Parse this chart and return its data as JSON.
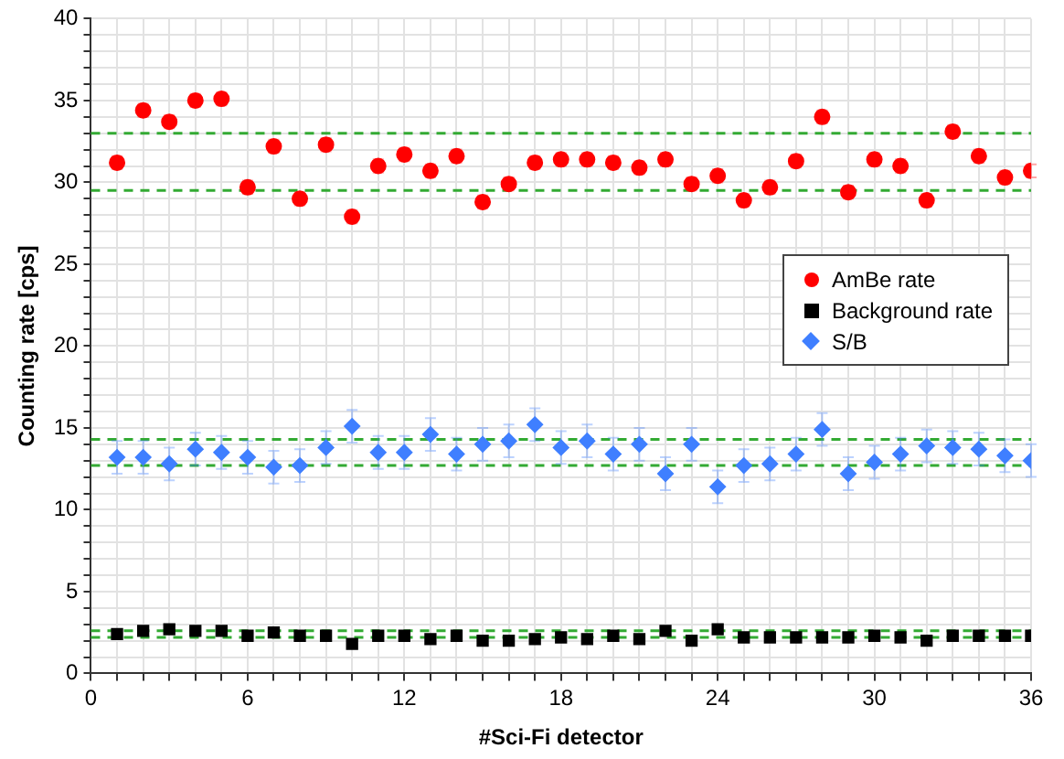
{
  "chart_data": {
    "type": "scatter",
    "xlabel": "#Sci-Fi detector",
    "ylabel": "Counting rate [cps]",
    "x": [
      1,
      2,
      3,
      4,
      5,
      6,
      7,
      8,
      9,
      10,
      11,
      12,
      13,
      14,
      15,
      16,
      17,
      18,
      19,
      20,
      21,
      22,
      23,
      24,
      25,
      26,
      27,
      28,
      29,
      30,
      31,
      32,
      33,
      34,
      35,
      36
    ],
    "series": [
      {
        "name": "AmBe rate",
        "color": "#ff0000",
        "marker": "circle",
        "values": [
          31.2,
          34.4,
          33.7,
          35.0,
          35.1,
          29.7,
          32.2,
          29.0,
          32.3,
          27.9,
          31.0,
          31.7,
          30.7,
          31.6,
          28.8,
          29.9,
          31.2,
          31.4,
          31.4,
          31.2,
          30.9,
          31.4,
          29.9,
          30.4,
          28.9,
          29.7,
          31.3,
          34.0,
          29.4,
          31.4,
          31.0,
          28.9,
          33.1,
          31.6,
          30.3,
          30.7
        ],
        "errors": [
          0.4,
          0.4,
          0.4,
          0.4,
          0.4,
          0.4,
          0.4,
          0.4,
          0.4,
          0.4,
          0.4,
          0.4,
          0.4,
          0.4,
          0.4,
          0.4,
          0.4,
          0.4,
          0.4,
          0.4,
          0.4,
          0.4,
          0.4,
          0.4,
          0.4,
          0.4,
          0.4,
          0.4,
          0.4,
          0.4,
          0.4,
          0.4,
          0.4,
          0.4,
          0.4,
          0.4
        ]
      },
      {
        "name": "Background rate",
        "color": "#000000",
        "marker": "square",
        "values": [
          2.4,
          2.6,
          2.7,
          2.6,
          2.6,
          2.3,
          2.5,
          2.3,
          2.3,
          1.8,
          2.3,
          2.3,
          2.1,
          2.3,
          2.0,
          2.0,
          2.1,
          2.2,
          2.1,
          2.3,
          2.1,
          2.6,
          2.0,
          2.7,
          2.2,
          2.2,
          2.2,
          2.2,
          2.2,
          2.3,
          2.2,
          2.0,
          2.3,
          2.3,
          2.3,
          2.3
        ]
      },
      {
        "name": "S/B",
        "color": "#3f7fff",
        "marker": "diamond",
        "values": [
          13.2,
          13.2,
          12.8,
          13.7,
          13.5,
          13.2,
          12.6,
          12.7,
          13.8,
          15.1,
          13.5,
          13.5,
          14.6,
          13.4,
          14.0,
          14.2,
          15.2,
          13.8,
          14.2,
          13.4,
          14.0,
          12.2,
          14.0,
          11.4,
          12.7,
          12.8,
          13.4,
          14.9,
          12.2,
          12.9,
          13.4,
          13.9,
          13.8,
          13.7,
          13.3,
          13.0
        ],
        "errors": [
          1,
          1,
          1,
          1,
          1,
          1,
          1,
          1,
          1,
          1,
          1,
          1,
          1,
          1,
          1,
          1,
          1,
          1,
          1,
          1,
          1,
          1,
          1,
          1,
          1,
          1,
          1,
          1,
          1,
          1,
          1,
          1,
          1,
          1,
          1,
          1
        ]
      }
    ],
    "xlim": [
      0,
      36
    ],
    "xticks": [
      0,
      {
        "value": 1,
        "label": null
      },
      {
        "value": 2,
        "label": null
      },
      {
        "value": 3,
        "label": null
      },
      {
        "value": 4,
        "label": null
      },
      {
        "value": 5,
        "label": null
      },
      6,
      {
        "value": 7,
        "label": null
      },
      {
        "value": 8,
        "label": null
      },
      {
        "value": 9,
        "label": null
      },
      {
        "value": 10,
        "label": null
      },
      {
        "value": 11,
        "label": null
      },
      12,
      {
        "value": 13,
        "label": null
      },
      {
        "value": 14,
        "label": null
      },
      {
        "value": 15,
        "label": null
      },
      {
        "value": 16,
        "label": null
      },
      {
        "value": 17,
        "label": null
      },
      18,
      {
        "value": 19,
        "label": null
      },
      {
        "value": 20,
        "label": null
      },
      {
        "value": 21,
        "label": null
      },
      {
        "value": 22,
        "label": null
      },
      {
        "value": 23,
        "label": null
      },
      24,
      {
        "value": 25,
        "label": null
      },
      {
        "value": 26,
        "label": null
      },
      {
        "value": 27,
        "label": null
      },
      {
        "value": 28,
        "label": null
      },
      {
        "value": 29,
        "label": null
      },
      30,
      {
        "value": 31,
        "label": null
      },
      {
        "value": 32,
        "label": null
      },
      {
        "value": 33,
        "label": null
      },
      {
        "value": 34,
        "label": null
      },
      {
        "value": 35,
        "label": null
      },
      36
    ],
    "ylim": [
      0,
      40
    ],
    "yticks": [
      0,
      {
        "value": 1,
        "label": null
      },
      {
        "value": 2,
        "label": null
      },
      {
        "value": 3,
        "label": null
      },
      {
        "value": 4,
        "label": null
      },
      5,
      {
        "value": 6,
        "label": null
      },
      {
        "value": 7,
        "label": null
      },
      {
        "value": 8,
        "label": null
      },
      {
        "value": 9,
        "label": null
      },
      10,
      {
        "value": 11,
        "label": null
      },
      {
        "value": 12,
        "label": null
      },
      {
        "value": 13,
        "label": null
      },
      {
        "value": 14,
        "label": null
      },
      15,
      {
        "value": 16,
        "label": null
      },
      {
        "value": 17,
        "label": null
      },
      {
        "value": 18,
        "label": null
      },
      {
        "value": 19,
        "label": null
      },
      20,
      {
        "value": 21,
        "label": null
      },
      {
        "value": 22,
        "label": null
      },
      {
        "value": 23,
        "label": null
      },
      {
        "value": 24,
        "label": null
      },
      25,
      {
        "value": 26,
        "label": null
      },
      {
        "value": 27,
        "label": null
      },
      {
        "value": 28,
        "label": null
      },
      {
        "value": 29,
        "label": null
      },
      30,
      {
        "value": 31,
        "label": null
      },
      {
        "value": 32,
        "label": null
      },
      {
        "value": 33,
        "label": null
      },
      {
        "value": 34,
        "label": null
      },
      35,
      {
        "value": 36,
        "label": null
      },
      {
        "value": 37,
        "label": null
      },
      {
        "value": 38,
        "label": null
      },
      {
        "value": 39,
        "label": null
      },
      40
    ],
    "ref_lines": [
      {
        "axis": "y",
        "value": 33,
        "color": "#33aa33",
        "line_style": "dashed"
      },
      {
        "axis": "y",
        "value": 29.5,
        "color": "#33aa33",
        "line_style": "dashed"
      },
      {
        "axis": "y",
        "value": 14.3,
        "color": "#33aa33",
        "line_style": "dashed"
      },
      {
        "axis": "y",
        "value": 12.7,
        "color": "#33aa33",
        "line_style": "dashed"
      },
      {
        "axis": "y",
        "value": 2.6,
        "color": "#33aa33",
        "line_style": "dashed"
      },
      {
        "axis": "y",
        "value": 2.2,
        "color": "#33aa33",
        "line_style": "dashed"
      }
    ],
    "grid": true,
    "legend": "right"
  }
}
